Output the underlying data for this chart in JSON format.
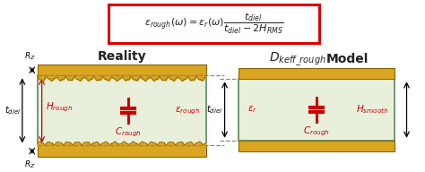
{
  "bg_color": "#ffffff",
  "box_fill": "#e8f0dc",
  "copper_color": "#DAA520",
  "copper_edge": "#8B6400",
  "formula_edge": "#dd0000",
  "cap_color": "#cc0000",
  "green_edge": "#5a8a5a",
  "text_red": "#cc0000",
  "text_black": "#000000",
  "text_dark": "#222222",
  "title_left": "Reality",
  "title_right_1": "$D_{keff\\_rough}$",
  "title_right_2": "Model",
  "label_Hrough": "$H_{rough}$",
  "label_Crough": "$C_{rough}$",
  "label_erough": "$\\varepsilon_{rough}$",
  "label_er": "$\\varepsilon_r$",
  "label_Crough_r": "$C_{rough}$",
  "label_Hsmooth": "$H_{smooth}$",
  "label_tdiel": "$t_{diel}$",
  "label_Rz_top": "$R_Z$",
  "label_Rz_bot": "$R_Z$",
  "formula_line1": "$\\varepsilon_{rough}(\\omega) = \\varepsilon_r(\\omega)\\dfrac{t_{diel}}{t_{diel} - 2H_{RMS}}$"
}
